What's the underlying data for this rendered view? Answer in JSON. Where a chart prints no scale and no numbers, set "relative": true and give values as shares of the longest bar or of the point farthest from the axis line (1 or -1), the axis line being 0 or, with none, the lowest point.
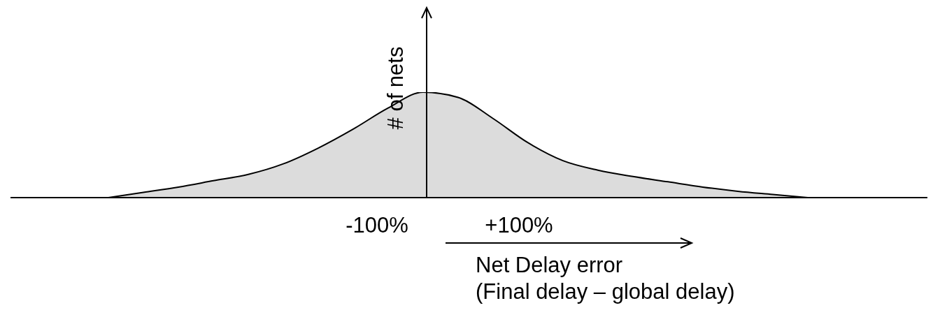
{
  "chart_data": {
    "type": "area",
    "relative": true,
    "xlabel": "Net Delay error",
    "ylabel": "# of nets",
    "categories": [
      null,
      null,
      null,
      null,
      null,
      null,
      null,
      null,
      null,
      null,
      null,
      null,
      null,
      null,
      null,
      null,
      null,
      null,
      null,
      null,
      null
    ],
    "series": [
      {
        "color": "#dcdcdc",
        "values": [
          0,
          0.05,
          0.1,
          0.16,
          0.22,
          0.32,
          0.47,
          0.65,
          0.85,
          1,
          0.95,
          0.75,
          0.52,
          0.35,
          0.26,
          0.2,
          0.15,
          0.1,
          0.06,
          0.03,
          0
        ]
      }
    ],
    "annotations": [
      "-100%",
      "+100%",
      "(Final delay – global delay)"
    ]
  }
}
